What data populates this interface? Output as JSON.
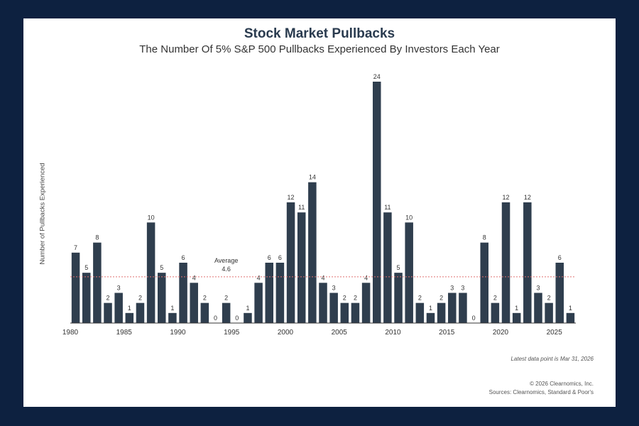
{
  "chart_data": {
    "type": "bar",
    "title": "Stock Market Pullbacks",
    "subtitle": "The Number Of 5% S&P 500 Pullbacks Experienced By Investors Each Year",
    "ylabel": "Number of Pullbacks Experienced",
    "xlabel": "",
    "categories": [
      1980,
      1981,
      1982,
      1983,
      1984,
      1985,
      1986,
      1987,
      1988,
      1989,
      1990,
      1991,
      1992,
      1993,
      1994,
      1995,
      1996,
      1997,
      1998,
      1999,
      2000,
      2001,
      2002,
      2003,
      2004,
      2005,
      2006,
      2007,
      2008,
      2009,
      2010,
      2011,
      2012,
      2013,
      2014,
      2015,
      2016,
      2017,
      2018,
      2019,
      2020,
      2021,
      2022,
      2023,
      2024,
      2025,
      2026
    ],
    "values": [
      7,
      5,
      8,
      2,
      3,
      1,
      2,
      10,
      5,
      1,
      6,
      4,
      2,
      0,
      2,
      0,
      1,
      4,
      6,
      6,
      12,
      11,
      14,
      4,
      3,
      2,
      2,
      4,
      24,
      11,
      5,
      10,
      2,
      1,
      2,
      3,
      3,
      0,
      8,
      2,
      12,
      1,
      12,
      3,
      2,
      6,
      1
    ],
    "x_tick_labels": [
      "1980",
      "1985",
      "1990",
      "1995",
      "2000",
      "2005",
      "2010",
      "2015",
      "2020",
      "2025"
    ],
    "ylim": [
      0,
      24
    ],
    "grid": false,
    "average": {
      "label": "Average",
      "value": 4.6,
      "value_label": "4.6"
    },
    "colors": {
      "bar": "#2f3e4e",
      "average_line": "#e07070",
      "text": "#333333"
    }
  },
  "footnote": "Latest data point is Mar 31, 2026",
  "copyright": "© 2026 Clearnomics, Inc.",
  "sources": "Sources: Clearnomics, Standard & Poor's"
}
